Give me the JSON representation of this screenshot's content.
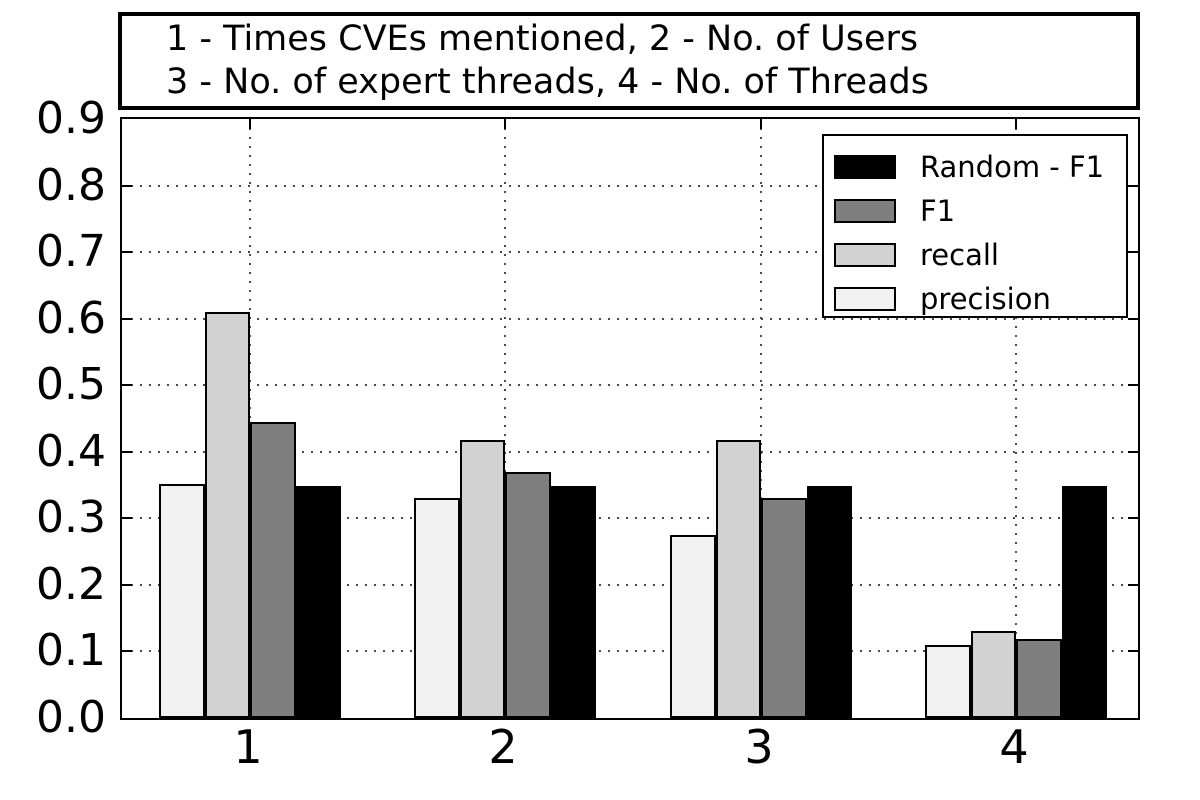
{
  "title": {
    "line1": "1 - Times CVEs mentioned, 2 - No. of Users",
    "line2": "3 - No. of expert threads, 4 - No. of Threads"
  },
  "chart_data": {
    "type": "bar",
    "title_lines": [
      "1 - Times CVEs mentioned, 2 - No. of Users",
      "3 - No. of expert threads, 4 - No. of Threads"
    ],
    "categories": [
      "1",
      "2",
      "3",
      "4"
    ],
    "series": [
      {
        "name": "precision",
        "color": "#f2f2f2",
        "values": [
          0.352,
          0.331,
          0.275,
          0.11
        ]
      },
      {
        "name": "recall",
        "color": "#d2d2d2",
        "values": [
          0.61,
          0.418,
          0.418,
          0.13
        ]
      },
      {
        "name": "F1",
        "color": "#7f7f7f",
        "values": [
          0.445,
          0.37,
          0.331,
          0.119
        ]
      },
      {
        "name": "Random - F1",
        "color": "#000000",
        "values": [
          0.349,
          0.349,
          0.349,
          0.349
        ]
      }
    ],
    "legend": {
      "position": "upper right",
      "entries": [
        "Random - F1",
        "F1",
        "recall",
        "precision"
      ]
    },
    "xlabel": "",
    "ylabel": "",
    "ylim": [
      0.0,
      0.9
    ],
    "yticks": [
      0.0,
      0.1,
      0.2,
      0.3,
      0.4,
      0.5,
      0.6,
      0.7,
      0.8,
      0.9
    ],
    "grid": true,
    "grid_style": "dotted",
    "bar_edge_color": "#000000",
    "background": "#ffffff"
  }
}
